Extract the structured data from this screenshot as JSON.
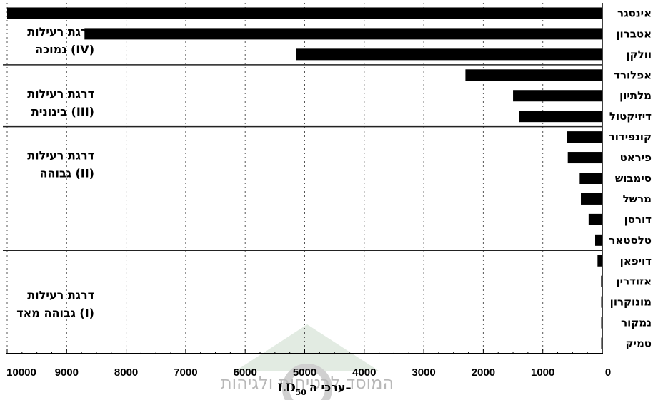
{
  "chart_data": {
    "type": "bar",
    "orientation": "horizontal",
    "categories": [
      "אינסגר",
      "אטברון",
      "וולקן",
      "אפלורד",
      "מלתיון",
      "דיזיקטול",
      "קונפידור",
      "פיראט",
      "סימבוש",
      "מרשל",
      "דורסן",
      "טלסטאר",
      "דויפאן",
      "אזודרין",
      "מונוקרון",
      "נמקור",
      "טמיק"
    ],
    "values": [
      10000,
      8700,
      5150,
      2300,
      1500,
      1400,
      600,
      580,
      380,
      360,
      230,
      120,
      80,
      20,
      15,
      8,
      1
    ],
    "xlim": [
      0,
      10000
    ],
    "x_reversed": true,
    "x_ticks": [
      0,
      1000,
      2000,
      3000,
      4000,
      5000,
      6000,
      7000,
      8000,
      9000,
      10000
    ],
    "xlabel": {
      "text": "ערכי ה–",
      "sym": "LD",
      "sub": "50"
    },
    "grid": true,
    "zones": [
      {
        "lines": [
          "דרגת רעילות",
          "נמוכה (IV)"
        ],
        "from": 0,
        "to": 3
      },
      {
        "lines": [
          "דרגת רעילות",
          "בינונית (III)"
        ],
        "from": 3,
        "to": 6
      },
      {
        "lines": [
          "דרגת רעילות",
          "גבוהה (II)"
        ],
        "from": 6,
        "to": 12
      },
      {
        "lines": [
          "דרגת רעילות",
          "גבוהה מאד (I)"
        ],
        "from": 12,
        "to": 17
      }
    ]
  },
  "colors": {
    "bar": "#000000",
    "grid": "#555555",
    "watermark": "#b8b8b8"
  },
  "watermark": {
    "text": "המוסד לבטיחות ולגיהות"
  }
}
